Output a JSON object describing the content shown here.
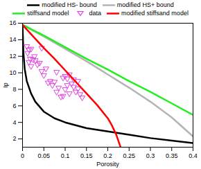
{
  "chart_data": {
    "type": "line",
    "x_label": "Porosity",
    "y_label": "Ip",
    "xlim": [
      0,
      0.4
    ],
    "ylim": [
      1,
      16
    ],
    "xticks": [
      0,
      0.05,
      0.1,
      0.15,
      0.2,
      0.25,
      0.3,
      0.35,
      0.4
    ],
    "yticks": [
      2,
      4,
      6,
      8,
      10,
      12,
      14,
      16
    ],
    "grid": false,
    "legend": "top",
    "series": [
      {
        "name": "modified HS- bound",
        "color": "#000000",
        "type": "line",
        "x": [
          0,
          0.002,
          0.005,
          0.01,
          0.02,
          0.03,
          0.05,
          0.075,
          0.1,
          0.15,
          0.2,
          0.25,
          0.3,
          0.35,
          0.4
        ],
        "values": [
          15.8,
          12.5,
          10.5,
          9.0,
          7.5,
          6.5,
          5.3,
          4.5,
          4.0,
          3.3,
          2.9,
          2.5,
          2.1,
          1.8,
          1.5
        ]
      },
      {
        "name": "modified HS+ bound",
        "color": "#b4b4b4",
        "type": "line",
        "x": [
          0,
          0.05,
          0.1,
          0.15,
          0.2,
          0.25,
          0.3,
          0.35,
          0.4
        ],
        "values": [
          15.8,
          14.4,
          12.9,
          11.4,
          9.8,
          8.2,
          6.5,
          4.6,
          2.3
        ]
      },
      {
        "name": "stiffsand model",
        "color": "#22ee22",
        "type": "line",
        "x": [
          0,
          0.05,
          0.1,
          0.15,
          0.2,
          0.25,
          0.3,
          0.35,
          0.4
        ],
        "values": [
          15.8,
          14.5,
          13.1,
          11.7,
          10.4,
          9.0,
          7.7,
          6.3,
          4.9
        ]
      },
      {
        "name": "data",
        "color": "#e040e0",
        "type": "scatter",
        "marker": "triangle-down",
        "x": [
          0.01,
          0.012,
          0.015,
          0.02,
          0.018,
          0.025,
          0.028,
          0.03,
          0.035,
          0.015,
          0.02,
          0.04,
          0.045,
          0.05,
          0.055,
          0.06,
          0.065,
          0.07,
          0.075,
          0.08,
          0.085,
          0.09,
          0.095,
          0.1,
          0.1,
          0.105,
          0.11,
          0.115,
          0.12,
          0.12,
          0.125,
          0.13,
          0.135,
          0.14,
          0.11,
          0.095,
          0.08,
          0.045,
          0.105,
          0.13
        ],
        "values": [
          13.2,
          12.4,
          12.8,
          12.9,
          11.7,
          11.6,
          12.0,
          11.5,
          11.0,
          11.3,
          10.8,
          11.2,
          10.2,
          9.7,
          10.5,
          8.8,
          9.0,
          8.5,
          8.9,
          7.7,
          8.2,
          7.1,
          7.2,
          8.0,
          9.6,
          9.3,
          9.8,
          8.7,
          9.2,
          8.3,
          7.7,
          8.1,
          7.4,
          7.0,
          7.5,
          9.4,
          10.1,
          13.0,
          8.5,
          9.0
        ]
      },
      {
        "name": "modified stiffsand model",
        "color": "#ff0000",
        "type": "line",
        "x": [
          0,
          0.025,
          0.05,
          0.075,
          0.1,
          0.125,
          0.15,
          0.175,
          0.2,
          0.21,
          0.22,
          0.23
        ],
        "values": [
          15.8,
          14.4,
          13.0,
          11.7,
          10.3,
          8.9,
          7.5,
          6.1,
          4.5,
          3.6,
          2.5,
          1.0
        ]
      }
    ]
  }
}
